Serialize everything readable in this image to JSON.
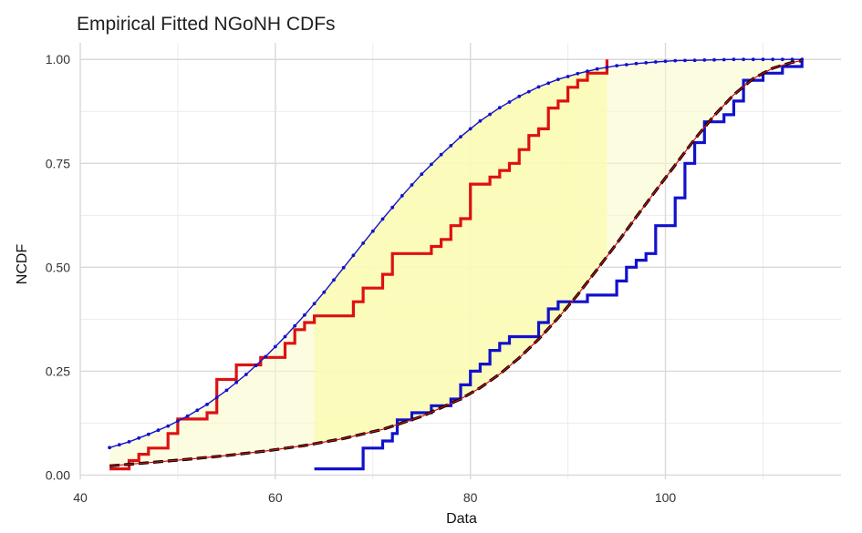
{
  "chart_data": {
    "type": "line",
    "title": "Empirical Fitted NGoNH CDFs",
    "xlabel": "Data",
    "ylabel": "NCDF",
    "xlim": [
      40,
      118
    ],
    "ylim": [
      -0.01,
      1.04
    ],
    "x_ticks": [
      40,
      60,
      80,
      100
    ],
    "x_tick_labels": [
      "40",
      "60",
      "80",
      "100"
    ],
    "x_minor_ticks": [
      50,
      70,
      90,
      110
    ],
    "y_ticks": [
      0.0,
      0.25,
      0.5,
      0.75,
      1.0
    ],
    "y_tick_labels": [
      "0.00",
      "0.25",
      "0.50",
      "0.75",
      "1.00"
    ],
    "grid": true,
    "legend": "none",
    "band": {
      "color": "#fafac8",
      "highlight_color": "#fafab4",
      "highlight_range": [
        64,
        94
      ]
    },
    "series": [
      {
        "kind": "step",
        "color": "#dd1111",
        "points": [
          [
            43,
            0.015
          ],
          [
            45,
            0.035
          ],
          [
            46,
            0.05
          ],
          [
            47,
            0.065
          ],
          [
            49,
            0.1
          ],
          [
            50,
            0.135
          ],
          [
            53,
            0.15
          ],
          [
            54,
            0.23
          ],
          [
            55,
            0.23
          ],
          [
            56,
            0.265
          ],
          [
            58,
            0.265
          ],
          [
            58.5,
            0.283
          ],
          [
            61,
            0.317
          ],
          [
            62,
            0.35
          ],
          [
            63,
            0.367
          ],
          [
            64,
            0.383
          ],
          [
            66,
            0.383
          ],
          [
            68,
            0.417
          ],
          [
            69,
            0.45
          ],
          [
            71,
            0.483
          ],
          [
            72,
            0.533
          ],
          [
            75,
            0.533
          ],
          [
            76,
            0.55
          ],
          [
            77,
            0.567
          ],
          [
            78,
            0.6
          ],
          [
            79,
            0.617
          ],
          [
            80,
            0.7
          ],
          [
            82,
            0.717
          ],
          [
            83,
            0.733
          ],
          [
            84,
            0.75
          ],
          [
            85,
            0.783
          ],
          [
            86,
            0.817
          ],
          [
            87,
            0.833
          ],
          [
            88,
            0.883
          ],
          [
            89,
            0.9
          ],
          [
            90,
            0.933
          ],
          [
            91,
            0.95
          ],
          [
            92,
            0.967
          ],
          [
            94,
            1.0
          ]
        ]
      },
      {
        "kind": "step",
        "color": "#1111cc",
        "points": [
          [
            64,
            0.015
          ],
          [
            69,
            0.065
          ],
          [
            70,
            0.065
          ],
          [
            71,
            0.082
          ],
          [
            72,
            0.1
          ],
          [
            72.5,
            0.133
          ],
          [
            73,
            0.133
          ],
          [
            74,
            0.15
          ],
          [
            76,
            0.167
          ],
          [
            78,
            0.183
          ],
          [
            79,
            0.217
          ],
          [
            80,
            0.25
          ],
          [
            81,
            0.267
          ],
          [
            82,
            0.3
          ],
          [
            83,
            0.317
          ],
          [
            84,
            0.333
          ],
          [
            87,
            0.367
          ],
          [
            88,
            0.4
          ],
          [
            89,
            0.417
          ],
          [
            92,
            0.433
          ],
          [
            95,
            0.467
          ],
          [
            96,
            0.5
          ],
          [
            97,
            0.517
          ],
          [
            98,
            0.533
          ],
          [
            99,
            0.6
          ],
          [
            101,
            0.667
          ],
          [
            102,
            0.75
          ],
          [
            103,
            0.8
          ],
          [
            104,
            0.85
          ],
          [
            106,
            0.867
          ],
          [
            107,
            0.9
          ],
          [
            108,
            0.95
          ],
          [
            110,
            0.967
          ],
          [
            112,
            0.983
          ],
          [
            114,
            1.0
          ]
        ]
      },
      {
        "kind": "dotted-line",
        "color": "#1111cc",
        "points": [
          [
            43,
            0.066
          ],
          [
            45,
            0.08
          ],
          [
            47,
            0.098
          ],
          [
            49,
            0.118
          ],
          [
            51,
            0.142
          ],
          [
            53,
            0.17
          ],
          [
            55,
            0.204
          ],
          [
            57,
            0.242
          ],
          [
            59,
            0.285
          ],
          [
            61,
            0.333
          ],
          [
            63,
            0.385
          ],
          [
            65,
            0.44
          ],
          [
            67,
            0.499
          ],
          [
            69,
            0.558
          ],
          [
            71,
            0.616
          ],
          [
            73,
            0.672
          ],
          [
            75,
            0.724
          ],
          [
            77,
            0.771
          ],
          [
            79,
            0.814
          ],
          [
            81,
            0.852
          ],
          [
            83,
            0.884
          ],
          [
            85,
            0.911
          ],
          [
            87,
            0.934
          ],
          [
            89,
            0.952
          ],
          [
            91,
            0.966
          ],
          [
            93,
            0.977
          ],
          [
            95,
            0.985
          ],
          [
            97,
            0.99
          ],
          [
            99,
            0.994
          ],
          [
            101,
            0.997
          ],
          [
            103,
            0.998
          ],
          [
            105,
            0.999
          ],
          [
            107,
            1.0
          ],
          [
            110,
            1.0
          ],
          [
            114,
            1.0
          ]
        ]
      },
      {
        "kind": "dashed-line",
        "color": "#000000",
        "points": [
          [
            43,
            0.022
          ],
          [
            47,
            0.03
          ],
          [
            51,
            0.038
          ],
          [
            55,
            0.047
          ],
          [
            59,
            0.058
          ],
          [
            63,
            0.071
          ],
          [
            67,
            0.088
          ],
          [
            71,
            0.11
          ],
          [
            75,
            0.141
          ],
          [
            79,
            0.183
          ],
          [
            81,
            0.21
          ],
          [
            83,
            0.243
          ],
          [
            85,
            0.282
          ],
          [
            87,
            0.327
          ],
          [
            89,
            0.378
          ],
          [
            91,
            0.434
          ],
          [
            93,
            0.495
          ],
          [
            95,
            0.557
          ],
          [
            97,
            0.621
          ],
          [
            99,
            0.684
          ],
          [
            101,
            0.746
          ],
          [
            103,
            0.808
          ],
          [
            105,
            0.865
          ],
          [
            107,
            0.915
          ],
          [
            109,
            0.954
          ],
          [
            111,
            0.979
          ],
          [
            113,
            0.993
          ],
          [
            114,
            0.997
          ]
        ]
      }
    ]
  }
}
